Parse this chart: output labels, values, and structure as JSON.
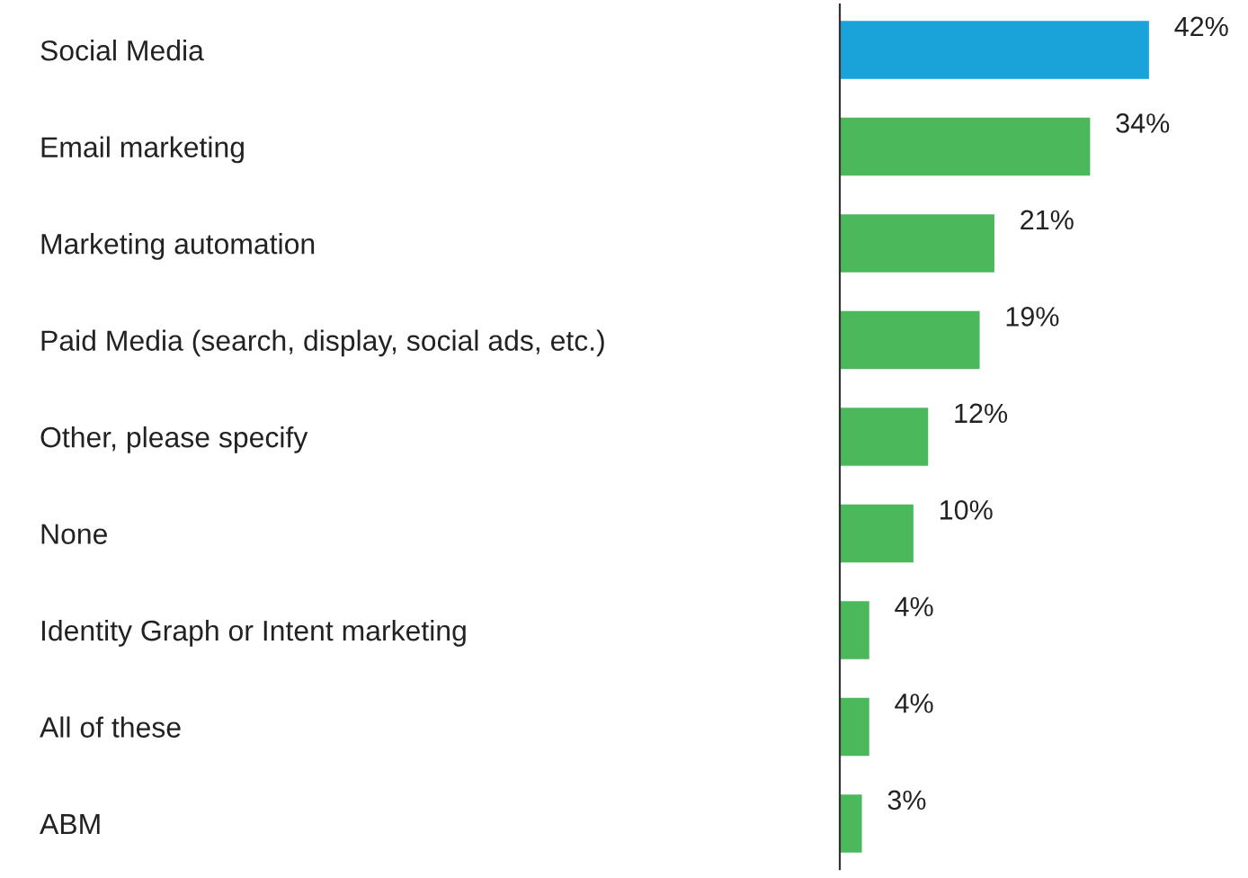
{
  "chart_data": {
    "type": "bar",
    "orientation": "horizontal",
    "categories": [
      "Social Media",
      "Email marketing",
      "Marketing automation",
      "Paid Media (search, display, social ads, etc.)",
      "Other, please specify",
      "None",
      "Identity Graph or Intent marketing",
      "All of these",
      "ABM"
    ],
    "values": [
      42,
      34,
      21,
      19,
      12,
      10,
      4,
      4,
      3
    ],
    "colors": [
      "#1aa3d8",
      "#4cb85c",
      "#4cb85c",
      "#4cb85c",
      "#4cb85c",
      "#4cb85c",
      "#4cb85c",
      "#4cb85c",
      "#4cb85c"
    ],
    "value_labels": [
      "42%",
      "34%",
      "21%",
      "19%",
      "12%",
      "10%",
      "4%",
      "4%",
      "3%"
    ],
    "tick_labels": "y",
    "grid": false,
    "legend": false
  }
}
